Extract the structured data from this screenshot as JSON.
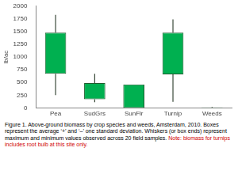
{
  "chart_data": {
    "type": "box",
    "categories": [
      "Pea",
      "SudGrs",
      "SunFlr",
      "Turnip",
      "Weeds"
    ],
    "lower": [
      670,
      170,
      0,
      660,
      0
    ],
    "upper": [
      1480,
      490,
      460,
      1480,
      10
    ],
    "min": [
      250,
      110,
      0,
      120,
      0
    ],
    "max": [
      1830,
      670,
      460,
      1740,
      20
    ],
    "color": "#00b050",
    "y_label": "lb/ac",
    "ylim": [
      0,
      2000
    ],
    "yticks": [
      0,
      250,
      500,
      750,
      1000,
      1250,
      1500,
      1750,
      2000
    ],
    "grid": false,
    "caption": "Figure 1. Above-ground biomass by crop species and weeds, Amsterdam, 2010. Boxes represent the average ‘+’ and ‘–’ one standard deviation. Whiskers (or box ends) represent maximum and minimum values observed across 20 field samples.",
    "note": "Note: biomass for turnips includes root bulb at this site only."
  }
}
